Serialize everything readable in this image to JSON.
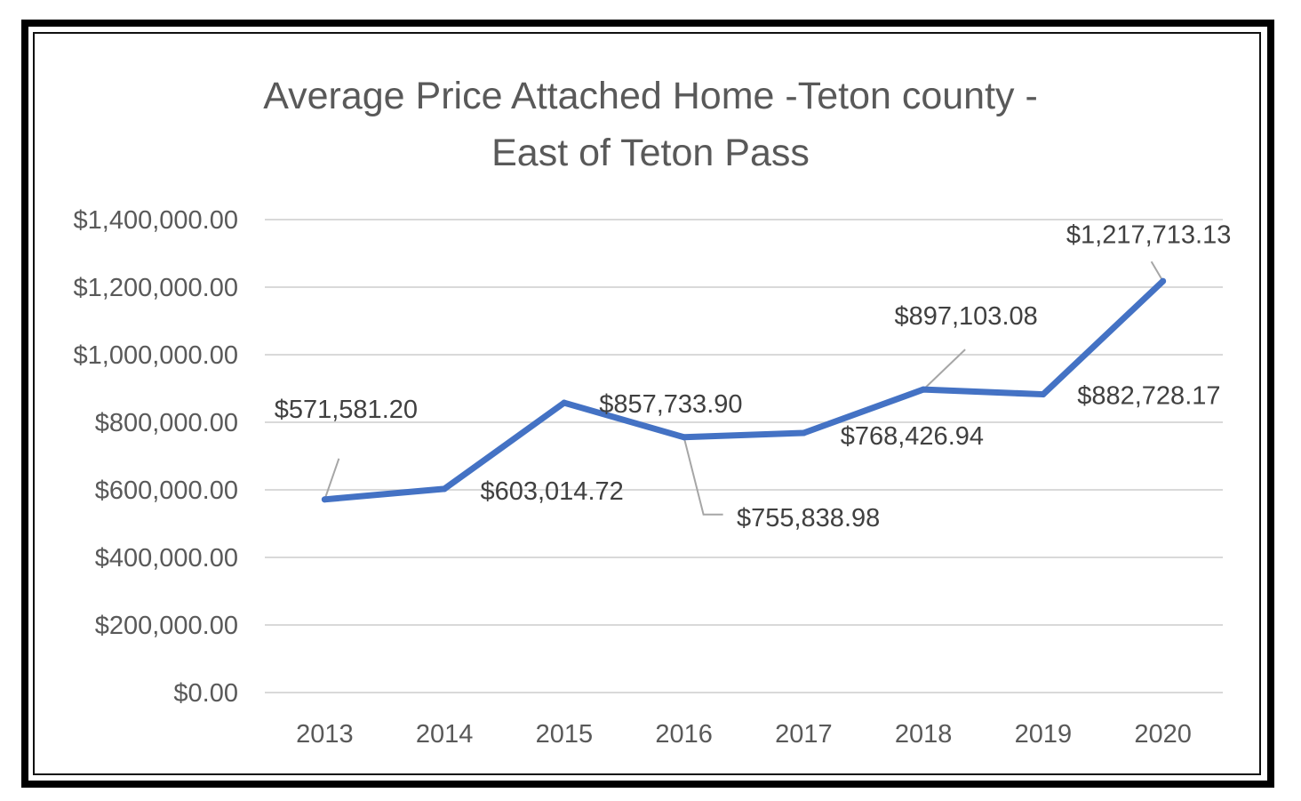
{
  "chart_data": {
    "type": "line",
    "title_lines": [
      "Average Price Attached Home -Teton county -",
      "East of Teton Pass"
    ],
    "xlabel": "",
    "ylabel": "",
    "categories": [
      "2013",
      "2014",
      "2015",
      "2016",
      "2017",
      "2018",
      "2019",
      "2020"
    ],
    "series": [
      {
        "values": [
          571581.2,
          603014.72,
          857733.9,
          755838.98,
          768426.94,
          897103.08,
          882728.17,
          1217713.13
        ],
        "data_labels": [
          "$571,581.20",
          "$603,014.72",
          "$857,733.90",
          "$755,838.98",
          "$768,426.94",
          "$897,103.08",
          "$882,728.17",
          "$1,217,713.13"
        ],
        "color": "#4472C4"
      }
    ],
    "ylim": [
      0,
      1400000
    ],
    "yticks": [
      0,
      200000,
      400000,
      600000,
      800000,
      1000000,
      1200000,
      1400000
    ],
    "ytick_labels": [
      "$0.00",
      "$200,000.00",
      "$400,000.00",
      "$600,000.00",
      "$800,000.00",
      "$1,000,000.00",
      "$1,200,000.00",
      "$1,400,000.00"
    ],
    "grid": true,
    "legend": "none",
    "colors": {
      "line": "#4472C4",
      "grid": "#d9d9d9",
      "text": "#595959",
      "leader": "#a6a6a6"
    }
  }
}
